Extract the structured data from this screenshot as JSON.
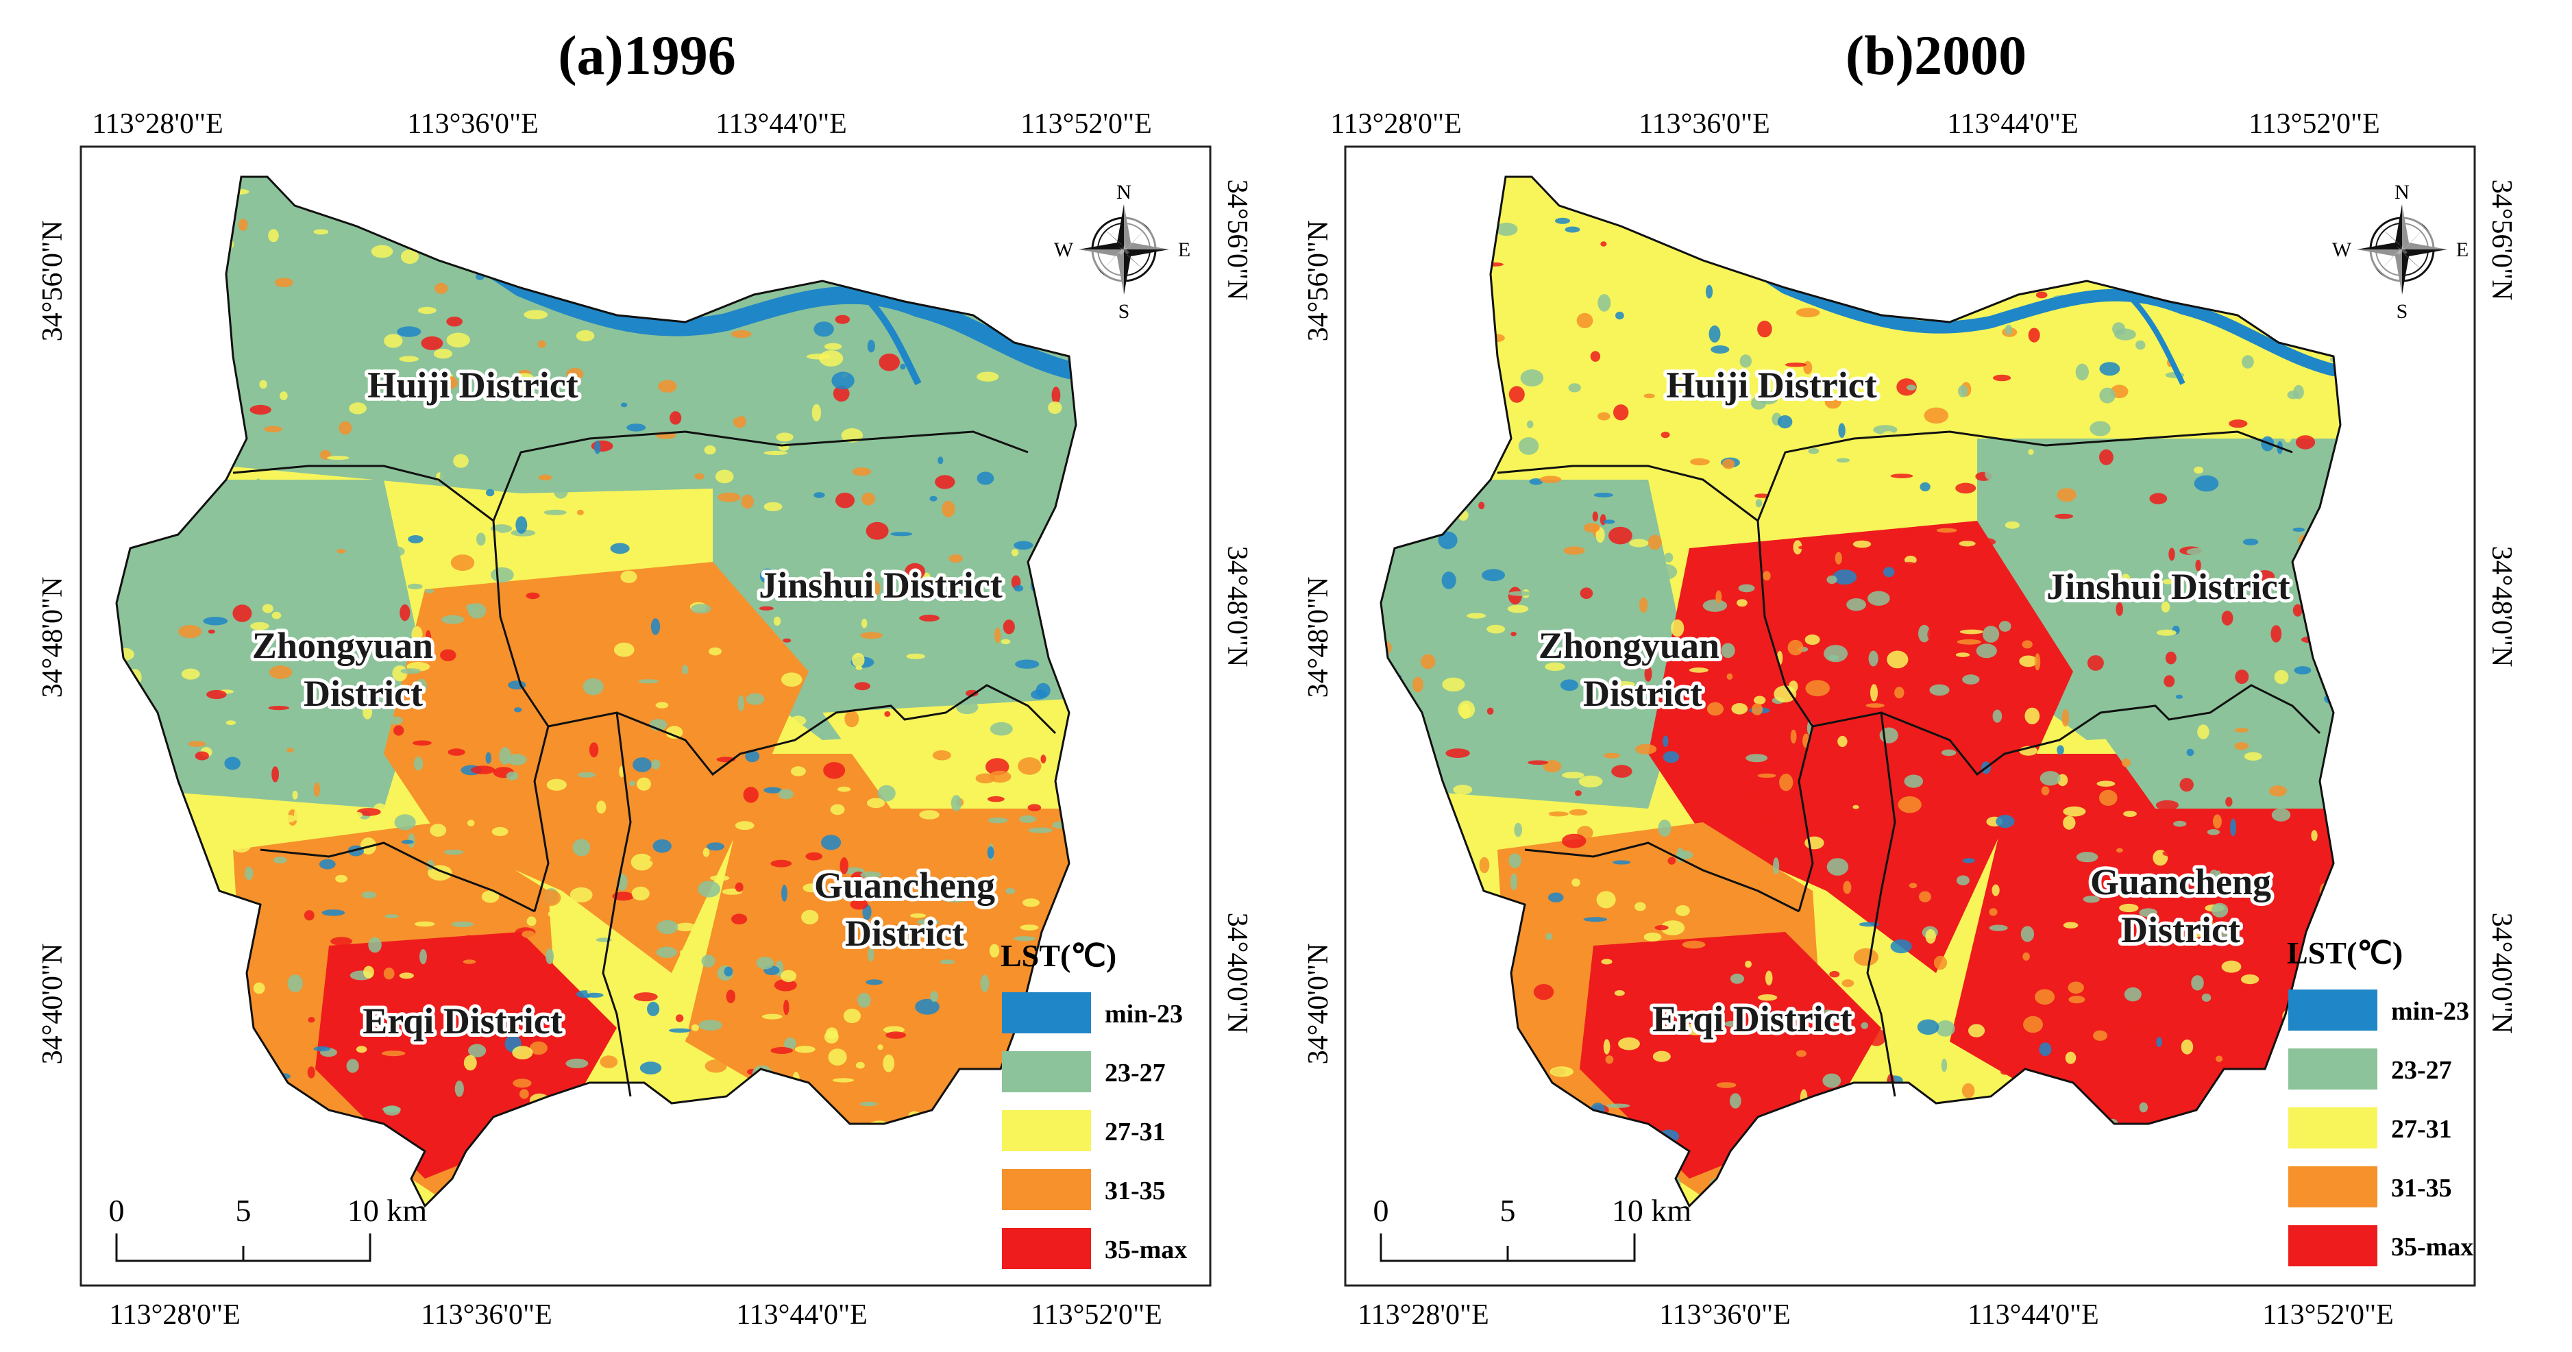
{
  "legend": {
    "title": "LST(℃)",
    "classes": [
      {
        "label": "min-23",
        "color": "#1f86c7"
      },
      {
        "label": "23-27",
        "color": "#8cc39a"
      },
      {
        "label": "27-31",
        "color": "#f7f55a"
      },
      {
        "label": "31-35",
        "color": "#f6912c"
      },
      {
        "label": "35-max",
        "color": "#ee1c1c"
      }
    ]
  },
  "river_color": "#1f86c7",
  "lon_labels": [
    "113°28'0\"E",
    "113°36'0\"E",
    "113°44'0\"E",
    "113°52'0\"E"
  ],
  "lat_labels": [
    "34°56'0\"N",
    "34°48'0\"N",
    "34°40'0\"N"
  ],
  "districts": {
    "huiji": "Huiji District",
    "jinshui": "Jinshui District",
    "zhongyuan_1": "Zhongyuan",
    "zhongyuan_2": "District",
    "guancheng_1": "Guancheng",
    "guancheng_2": "District",
    "erqi": "Erqi District"
  },
  "compass": {
    "n": "N",
    "s": "S",
    "e": "E",
    "w": "W"
  },
  "scale_bar": {
    "labels": [
      "0",
      "5",
      "10 km"
    ]
  },
  "panels": [
    {
      "id": "a",
      "title": "(a)1996",
      "zone_levels": {
        "north": 1,
        "west": 1,
        "northeast": 1,
        "center": 3,
        "southwest": 3,
        "south": 4,
        "southeast": 3,
        "east": 2
      },
      "speckle": {
        "seed": 7,
        "count": 900,
        "weights": [
          0.1,
          0.3,
          0.3,
          0.18,
          0.12
        ]
      }
    },
    {
      "id": "b",
      "title": "(b)2000",
      "zone_levels": {
        "north": 2,
        "west": 1,
        "northeast": 1,
        "center": 4,
        "southwest": 3,
        "south": 4,
        "southeast": 4,
        "east": 1
      },
      "speckle": {
        "seed": 19,
        "count": 900,
        "weights": [
          0.08,
          0.24,
          0.26,
          0.2,
          0.22
        ]
      }
    }
  ]
}
